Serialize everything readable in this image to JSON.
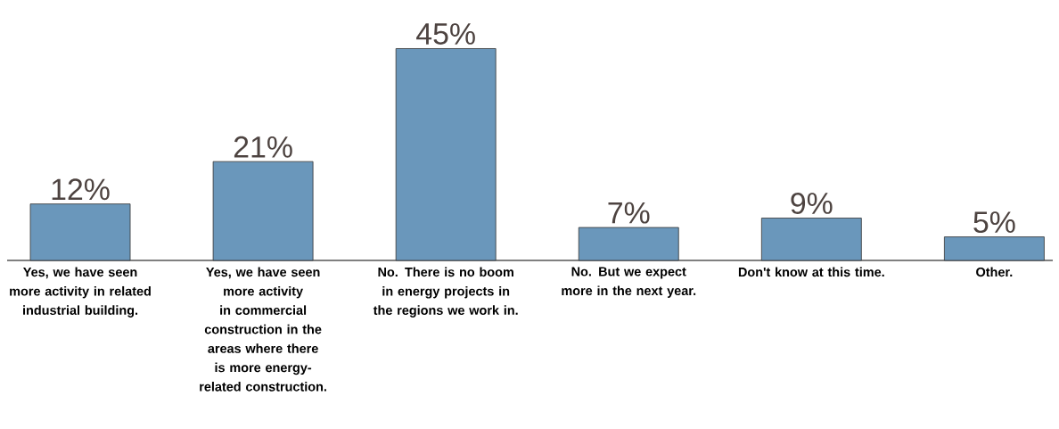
{
  "chart_data": {
    "type": "bar",
    "categories": [
      "Yes, we have seen more activity in related industrial building.",
      "Yes, we have seen more activity in commercial construction in the areas where there is more energy-related construction.",
      "No. There is no boom in energy projects in the regions we work in.",
      "No. But we expect more in the next year.",
      "Don't know at this time.",
      "Other."
    ],
    "values": [
      12,
      21,
      45,
      7,
      9,
      5
    ],
    "value_labels": [
      "12%",
      "21%",
      "45%",
      "7%",
      "9%",
      "5%"
    ],
    "color": "#6a97bb"
  }
}
